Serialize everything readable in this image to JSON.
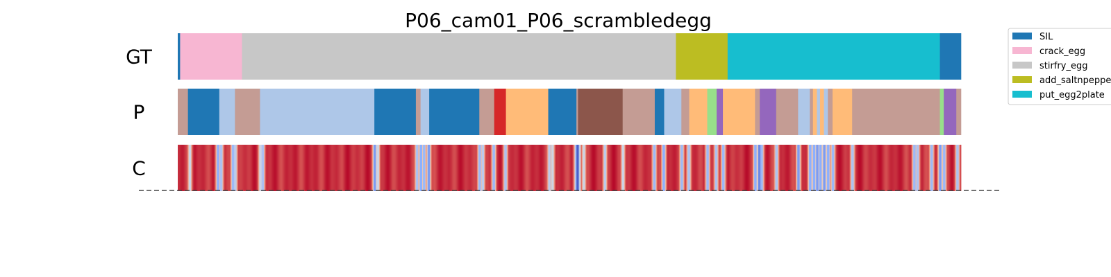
{
  "chart_data": {
    "type": "segmentation-timeline",
    "title": "P06_cam01_P06_scrambledegg",
    "x_range": [
      0,
      1000
    ],
    "rows": [
      {
        "label": "GT",
        "segments": [
          {
            "start": 0,
            "end": 3,
            "action": "SIL"
          },
          {
            "start": 3,
            "end": 82,
            "action": "crack_egg"
          },
          {
            "start": 82,
            "end": 636,
            "action": "stirfry_egg"
          },
          {
            "start": 636,
            "end": 702,
            "action": "add_saltnpepper"
          },
          {
            "start": 702,
            "end": 973,
            "action": "put_egg2plate"
          },
          {
            "start": 973,
            "end": 1000,
            "action": "SIL"
          }
        ]
      },
      {
        "label": "P",
        "segments": [
          {
            "start": 0,
            "end": 13,
            "color": "#c49c94"
          },
          {
            "start": 13,
            "end": 53,
            "color": "#1f77b4"
          },
          {
            "start": 53,
            "end": 73,
            "color": "#aec7e8"
          },
          {
            "start": 73,
            "end": 105,
            "color": "#c49c94"
          },
          {
            "start": 105,
            "end": 251,
            "color": "#aec7e8"
          },
          {
            "start": 251,
            "end": 304,
            "color": "#1f77b4"
          },
          {
            "start": 304,
            "end": 310,
            "color": "#c49c94"
          },
          {
            "start": 310,
            "end": 321,
            "color": "#aec7e8"
          },
          {
            "start": 321,
            "end": 385,
            "color": "#1f77b4"
          },
          {
            "start": 385,
            "end": 404,
            "color": "#c49c94"
          },
          {
            "start": 404,
            "end": 419,
            "color": "#d62728"
          },
          {
            "start": 419,
            "end": 473,
            "color": "#ffbb78"
          },
          {
            "start": 473,
            "end": 509,
            "color": "#1f77b4"
          },
          {
            "start": 509,
            "end": 511,
            "color": "#c49c94"
          },
          {
            "start": 511,
            "end": 568,
            "color": "#8c564b"
          },
          {
            "start": 568,
            "end": 609,
            "color": "#c49c94"
          },
          {
            "start": 609,
            "end": 621,
            "color": "#1f77b4"
          },
          {
            "start": 621,
            "end": 643,
            "color": "#aec7e8"
          },
          {
            "start": 643,
            "end": 653,
            "color": "#c49c94"
          },
          {
            "start": 653,
            "end": 676,
            "color": "#ffbb78"
          },
          {
            "start": 676,
            "end": 688,
            "color": "#98df8a"
          },
          {
            "start": 688,
            "end": 696,
            "color": "#9467bd"
          },
          {
            "start": 696,
            "end": 737,
            "color": "#ffbb78"
          },
          {
            "start": 737,
            "end": 743,
            "color": "#c49c94"
          },
          {
            "start": 743,
            "end": 764,
            "color": "#9467bd"
          },
          {
            "start": 764,
            "end": 792,
            "color": "#c49c94"
          },
          {
            "start": 792,
            "end": 807,
            "color": "#aec7e8"
          },
          {
            "start": 807,
            "end": 811,
            "color": "#c49c94"
          },
          {
            "start": 811,
            "end": 816,
            "color": "#ffbb78"
          },
          {
            "start": 816,
            "end": 820,
            "color": "#aec7e8"
          },
          {
            "start": 820,
            "end": 825,
            "color": "#ffbb78"
          },
          {
            "start": 825,
            "end": 830,
            "color": "#aec7e8"
          },
          {
            "start": 830,
            "end": 836,
            "color": "#c49c94"
          },
          {
            "start": 836,
            "end": 861,
            "color": "#ffbb78"
          },
          {
            "start": 861,
            "end": 973,
            "color": "#c49c94"
          },
          {
            "start": 973,
            "end": 978,
            "color": "#98df8a"
          },
          {
            "start": 978,
            "end": 994,
            "color": "#9467bd"
          },
          {
            "start": 994,
            "end": 1000,
            "color": "#c49c94"
          }
        ]
      },
      {
        "label": "C",
        "colormap": "coolwarm",
        "dips": [
          {
            "pos": 15,
            "level": 0.45
          },
          {
            "pos": 51,
            "level": 0.25
          },
          {
            "pos": 55,
            "level": 0.35
          },
          {
            "pos": 70,
            "level": 0.3
          },
          {
            "pos": 73,
            "level": 0.4
          },
          {
            "pos": 105,
            "level": 0.45
          },
          {
            "pos": 108,
            "level": 0.35
          },
          {
            "pos": 251,
            "level": 0.2
          },
          {
            "pos": 255,
            "level": 0.45
          },
          {
            "pos": 305,
            "level": 0.35
          },
          {
            "pos": 310,
            "level": 0.25
          },
          {
            "pos": 314,
            "level": 0.3
          },
          {
            "pos": 320,
            "level": 0.2
          },
          {
            "pos": 385,
            "level": 0.3
          },
          {
            "pos": 389,
            "level": 0.4
          },
          {
            "pos": 403,
            "level": 0.3
          },
          {
            "pos": 418,
            "level": 0.35
          },
          {
            "pos": 474,
            "level": 0.4
          },
          {
            "pos": 478,
            "level": 0.45
          },
          {
            "pos": 508,
            "level": 0.35
          },
          {
            "pos": 510,
            "level": 0.05
          },
          {
            "pos": 512,
            "level": 0.4
          },
          {
            "pos": 518,
            "level": 0.45
          },
          {
            "pos": 545,
            "level": 0.4
          },
          {
            "pos": 568,
            "level": 0.45
          },
          {
            "pos": 608,
            "level": 0.3
          },
          {
            "pos": 620,
            "level": 0.25
          },
          {
            "pos": 643,
            "level": 0.3
          },
          {
            "pos": 652,
            "level": 0.35
          },
          {
            "pos": 676,
            "level": 0.3
          },
          {
            "pos": 687,
            "level": 0.35
          },
          {
            "pos": 696,
            "level": 0.3
          },
          {
            "pos": 737,
            "level": 0.25
          },
          {
            "pos": 742,
            "level": 0.15
          },
          {
            "pos": 745,
            "level": 0.3
          },
          {
            "pos": 764,
            "level": 0.35
          },
          {
            "pos": 792,
            "level": 0.2
          },
          {
            "pos": 807,
            "level": 0.25
          },
          {
            "pos": 812,
            "level": 0.25
          },
          {
            "pos": 816,
            "level": 0.2
          },
          {
            "pos": 820,
            "level": 0.25
          },
          {
            "pos": 825,
            "level": 0.2
          },
          {
            "pos": 830,
            "level": 0.25
          },
          {
            "pos": 836,
            "level": 0.3
          },
          {
            "pos": 861,
            "level": 0.35
          },
          {
            "pos": 940,
            "level": 0.3
          },
          {
            "pos": 944,
            "level": 0.35
          },
          {
            "pos": 962,
            "level": 0.3
          },
          {
            "pos": 973,
            "level": 0.2
          },
          {
            "pos": 978,
            "level": 0.3
          },
          {
            "pos": 995,
            "level": 0.35
          }
        ]
      }
    ],
    "legend": {
      "placement": "upper-right",
      "entries": [
        {
          "label": "SIL",
          "color": "#1f77b4"
        },
        {
          "label": "crack_egg",
          "color": "#f7b6d2"
        },
        {
          "label": "stirfry_egg",
          "color": "#c7c7c7"
        },
        {
          "label": "add_saltnpepper",
          "color": "#bcbd22"
        },
        {
          "label": "put_egg2plate",
          "color": "#17becf"
        }
      ]
    },
    "grid": false,
    "baseline_style": "dashed"
  }
}
